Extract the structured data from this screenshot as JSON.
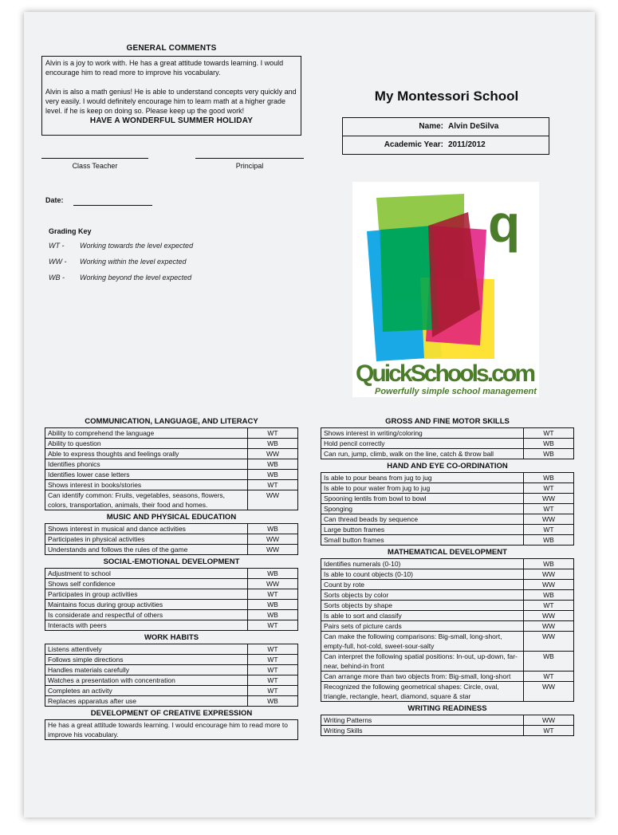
{
  "comments": {
    "heading": "GENERAL COMMENTS",
    "para1": "Alvin is a joy to work with. He has a great attitude towards learning. I would encourage him to read more to improve his vocabulary.",
    "para2": "Alvin is also a math genius! He is able to understand concepts very quickly and very easily. I would definitely encourage him to learn math at a higher grade level. if he is keep on doing so. Please keep up the good work!",
    "closing": "HAVE A WONDERFUL SUMMER HOLIDAY"
  },
  "signatures": {
    "teacher": "Class Teacher",
    "principal": "Principal",
    "date": "Date:"
  },
  "grading_key": {
    "title": "Grading Key",
    "items": [
      {
        "code": "WT -",
        "desc": "Working towards the level expected"
      },
      {
        "code": "WW -",
        "desc": "Working within the level expected"
      },
      {
        "code": "WB -",
        "desc": "Working beyond the level expected"
      }
    ]
  },
  "school": {
    "name": "My Montessori School",
    "name_label": "Name:",
    "student": "Alvin DeSilva",
    "year_label": "Academic Year:",
    "year": "2011/2012"
  },
  "logo": {
    "text": "QuickSchools.com",
    "tagline": "Powerfully simple school management",
    "letter": "q",
    "colors": [
      "#8dc63f",
      "#00a0e3",
      "#e2187f",
      "#fee12b",
      "#00a650",
      "#a6192e",
      "#4a7c2a"
    ]
  },
  "left_sections": [
    {
      "title": "COMMUNICATION, LANGUAGE, AND LITERACY",
      "rows": [
        [
          "Ability to comprehend the language",
          "WT"
        ],
        [
          "Ability to question",
          "WB"
        ],
        [
          "Able to express thoughts and feelings orally",
          "WW"
        ],
        [
          "Identifies phonics",
          "WB"
        ],
        [
          "Identifies lower case letters",
          "WB"
        ],
        [
          "Shows interest in books/stories",
          "WT"
        ],
        [
          "Can identify common: Fruits, vegetables, seasons, flowers, colors, transportation, animals, their food and homes.",
          "WW"
        ]
      ]
    },
    {
      "title": "MUSIC AND PHYSICAL EDUCATION",
      "rows": [
        [
          "Shows interest in musical and dance activities",
          "WB"
        ],
        [
          "Participates in physical activities",
          "WW"
        ],
        [
          "Understands and follows the rules of the game",
          "WW"
        ]
      ]
    },
    {
      "title": "SOCIAL-EMOTIONAL DEVELOPMENT",
      "rows": [
        [
          "Adjustment to school",
          "WB"
        ],
        [
          "Shows self confidence",
          "WW"
        ],
        [
          "Participates in group activities",
          "WT"
        ],
        [
          "Maintains focus during group activities",
          "WB"
        ],
        [
          "Is considerate and respectful of others",
          "WB"
        ],
        [
          "Interacts with peers",
          "WT"
        ]
      ]
    },
    {
      "title": "WORK HABITS",
      "rows": [
        [
          "Listens attentively",
          "WT"
        ],
        [
          "Follows simple directions",
          "WT"
        ],
        [
          "Handles materials carefully",
          "WT"
        ],
        [
          "Watches a presentation with concentration",
          "WT"
        ],
        [
          "Completes an activity",
          "WT"
        ],
        [
          "Replaces apparatus after use",
          "WB"
        ]
      ]
    },
    {
      "title": "DEVELOPMENT OF CREATIVE EXPRESSION",
      "rows": [
        [
          "He has a great attitude towards learning. I would encourage him to read more to improve his vocabulary."
        ]
      ]
    }
  ],
  "right_sections": [
    {
      "title": "GROSS AND FINE MOTOR SKILLS",
      "rows": [
        [
          "Shows interest in writing/coloring",
          "WT"
        ],
        [
          "Hold pencil correctly",
          "WB"
        ],
        [
          "Can run, jump, climb, walk on the line, catch & throw ball",
          "WB"
        ]
      ]
    },
    {
      "title": "HAND AND EYE CO-ORDINATION",
      "rows": [
        [
          "Is able to pour beans from jug to jug",
          "WB"
        ],
        [
          "Is able to pour water from jug to jug",
          "WT"
        ],
        [
          "Spooning lentils from bowl to bowl",
          "WW"
        ],
        [
          "Sponging",
          "WT"
        ],
        [
          "Can thread beads by sequence",
          "WW"
        ],
        [
          "Large button frames",
          "WT"
        ],
        [
          "Small button frames",
          "WB"
        ]
      ]
    },
    {
      "title": "MATHEMATICAL DEVELOPMENT",
      "rows": [
        [
          "Identifies numerals (0-10)",
          "WB"
        ],
        [
          "Is able to count objects (0-10)",
          "WW"
        ],
        [
          "Count by rote",
          "WW"
        ],
        [
          "Sorts objects by color",
          "WB"
        ],
        [
          "Sorts objects by shape",
          "WT"
        ],
        [
          "Is able to sort and classify",
          "WW"
        ],
        [
          "Pairs sets of picture cards",
          "WW"
        ],
        [
          "Can make the following comparisons: Big-small, long-short, empty-full, hot-cold, sweet-sour-salty",
          "WW"
        ],
        [
          "Can interpret the following spatial positions: In-out, up-down, far-near, behind-in front",
          "WB"
        ],
        [
          "Can arrange more than two objects from: Big-small, long-short",
          "WT"
        ],
        [
          "Recognized the following geometrical shapes: Circle, oval, triangle, rectangle, heart, diamond, square & star",
          "WW"
        ]
      ]
    },
    {
      "title": "WRITING READINESS",
      "rows": [
        [
          "Writing Patterns",
          "WW"
        ],
        [
          "Writing Skills",
          "WT"
        ]
      ]
    }
  ]
}
